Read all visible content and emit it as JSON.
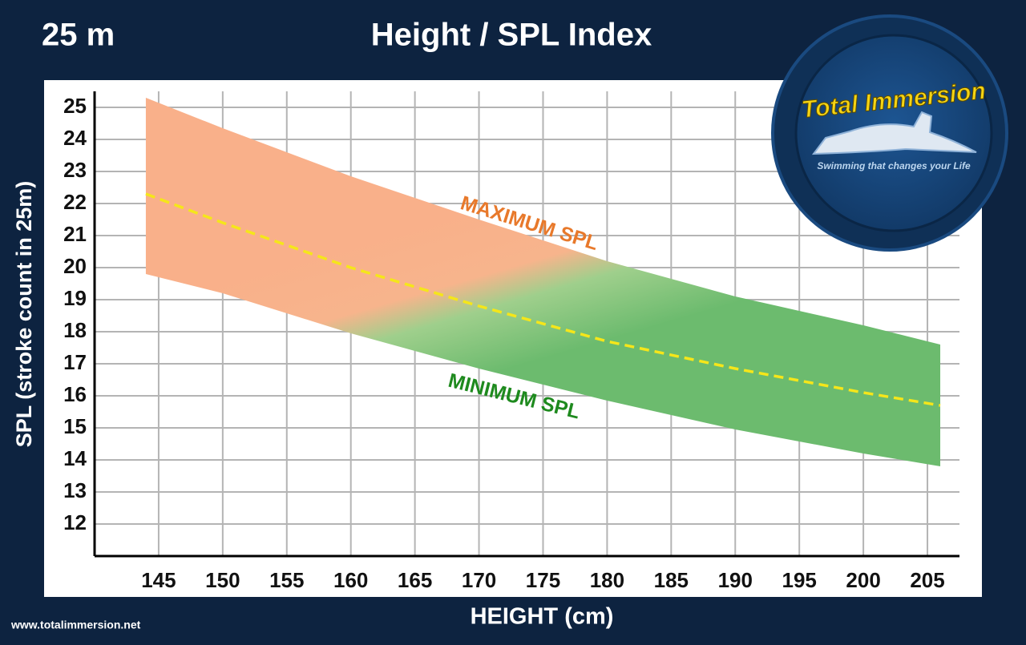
{
  "chart_data": {
    "type": "band",
    "title": "Height / SPL Index",
    "subtitle": "25 m",
    "x_label": "HEIGHT (cm)",
    "y_label": "SPL (stroke count in 25m)",
    "x": [
      144,
      150,
      160,
      170,
      180,
      190,
      200,
      206
    ],
    "series": [
      {
        "name": "MAXIMUM SPL",
        "color": "#e8792b",
        "values": [
          25.3,
          24.35,
          22.85,
          21.5,
          20.2,
          19.1,
          18.2,
          17.6
        ]
      },
      {
        "color": "#f5e61a",
        "values": [
          22.3,
          21.4,
          20.0,
          18.8,
          17.7,
          16.85,
          16.1,
          15.7
        ]
      },
      {
        "name": "MINIMUM SPL",
        "color": "#1e8a1e",
        "values": [
          19.8,
          19.2,
          17.95,
          16.85,
          15.85,
          14.95,
          14.2,
          13.8
        ]
      }
    ],
    "xlim": [
      140,
      207.5
    ],
    "ylim": [
      11,
      25.5
    ],
    "xticks": [
      145,
      150,
      155,
      160,
      165,
      170,
      175,
      180,
      185,
      190,
      195,
      200,
      205
    ],
    "yticks": [
      12,
      13,
      14,
      15,
      16,
      17,
      18,
      19,
      20,
      21,
      22,
      23,
      24,
      25
    ],
    "grid": true
  },
  "logo": {
    "title": "Total Immersion",
    "tagline": "Swimming that changes your Life"
  },
  "website": "www.totalimmersion.net"
}
